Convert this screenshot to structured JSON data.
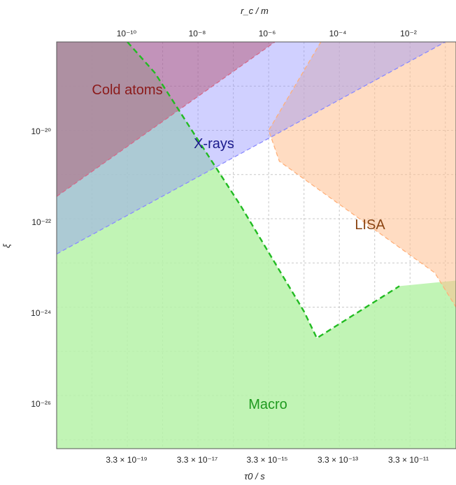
{
  "chart_data": {
    "type": "area",
    "title": "",
    "x_axis": {
      "bottom": {
        "label": "τ0 / s",
        "scale": "log",
        "tick_labels": [
          "3.3 × 10⁻¹⁹",
          "3.3 × 10⁻¹⁷",
          "3.3 × 10⁻¹⁵",
          "3.3 × 10⁻¹³",
          "3.3 × 10⁻¹¹"
        ]
      },
      "top": {
        "label": "r_c / m",
        "scale": "log",
        "tick_labels": [
          "10⁻¹⁰",
          "10⁻⁸",
          "10⁻⁶",
          "10⁻⁴",
          "10⁻²"
        ],
        "range": [
          1e-12,
          0.2
        ]
      }
    },
    "y_axis": {
      "label": "ξ",
      "scale": "log",
      "tick_labels": [
        "10⁻²⁰",
        "10⁻²²",
        "10⁻²⁴",
        "10⁻²⁶"
      ],
      "range": [
        6.3e-28,
        1e-18
      ]
    },
    "grid": true,
    "colors": {
      "cold_atoms": "#b24a66",
      "xrays": "#9090ff",
      "lisa": "#ffc090",
      "macro": "#b6f2a8",
      "macro_boundary": "#22bb22",
      "cold_atoms_text": "#8b1a1a",
      "xrays_text": "#1a1a8b",
      "lisa_text": "#8b4513",
      "macro_text": "#1f9a1f"
    },
    "series": [
      {
        "name": "Cold atoms",
        "kind": "excluded-region",
        "boundary_rc_m": [
          1e-12,
          1.5e-06
        ],
        "boundary_xi": [
          3.2e-22,
          1e-18
        ]
      },
      {
        "name": "X-rays",
        "kind": "excluded-region",
        "boundary_rc_m": [
          1e-12,
          0.1
        ],
        "boundary_xi": [
          1.6e-23,
          1e-18
        ]
      },
      {
        "name": "LISA",
        "kind": "sensitivity-region",
        "boundary_rc_m": [
          3e-05,
          1e-06,
          2e-06,
          0.05,
          0.2
        ],
        "boundary_xi": [
          1e-18,
          1e-20,
          2e-21,
          6e-24,
          1e-24
        ]
      },
      {
        "name": "Macro",
        "kind": "excluded-region",
        "boundary_rc_m": [
          1e-10,
          6e-10,
          8e-09,
          1.6e-07,
          1e-05,
          2.3e-05,
          0.005,
          0.2
        ],
        "boundary_xi": [
          1e-18,
          2e-19,
          8e-21,
          2e-22,
          8e-25,
          2e-25,
          3e-24,
          4e-24
        ]
      }
    ],
    "annotations": [
      {
        "text": "Cold atoms",
        "rc_m": 3e-11,
        "xi": 1.5e-19
      },
      {
        "text": "X-rays",
        "rc_m": 5e-08,
        "xi": 4e-21
      },
      {
        "text": "LISA",
        "rc_m": 0.0015,
        "xi": 3e-22
      },
      {
        "text": "Macro",
        "rc_m": 5e-07,
        "xi": 3e-26
      }
    ]
  }
}
